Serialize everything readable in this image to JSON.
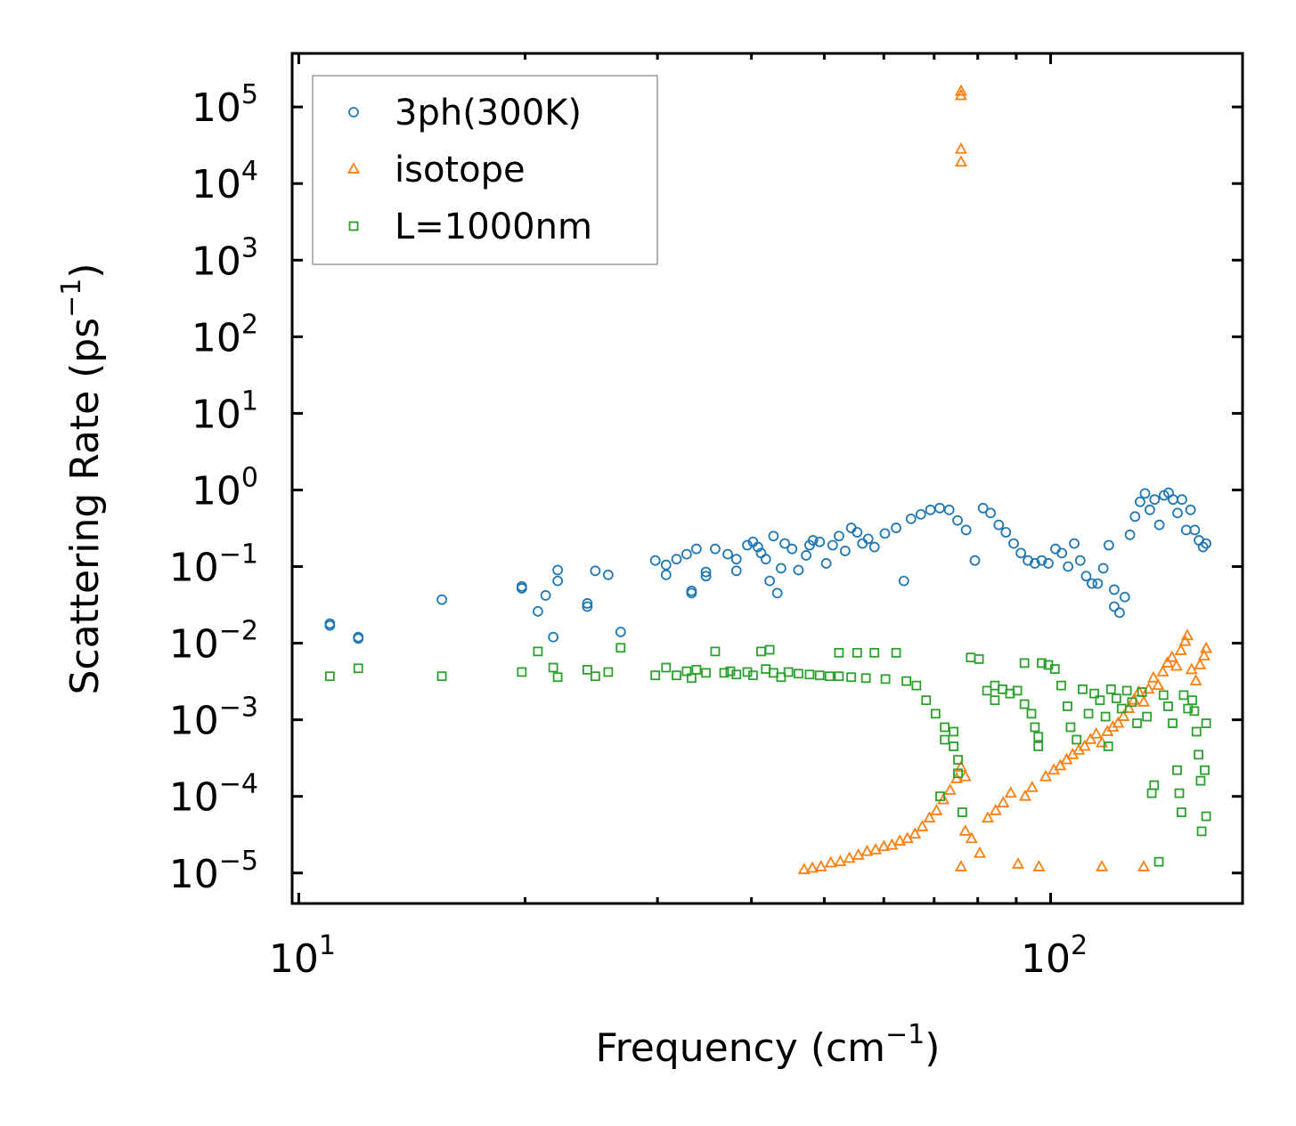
{
  "chart_data": {
    "type": "scatter",
    "xscale": "log",
    "yscale": "log",
    "xlabel": "Frequency (cm",
    "xlabel_sup": "−1",
    "xlabel_tail": ")",
    "ylabel": "Scattering Rate (ps",
    "ylabel_sup": "−1",
    "ylabel_tail": ")",
    "xlim": [
      9.8,
      180
    ],
    "ylim": [
      4e-06,
      500000
    ],
    "xticks": [
      {
        "value": 10,
        "base": "10",
        "exp": "1"
      },
      {
        "value": 100,
        "base": "10",
        "exp": "2"
      }
    ],
    "yticks": [
      {
        "value": 100000,
        "base": "10",
        "exp": "5"
      },
      {
        "value": 10000,
        "base": "10",
        "exp": "4"
      },
      {
        "value": 1000,
        "base": "10",
        "exp": "3"
      },
      {
        "value": 100,
        "base": "10",
        "exp": "2"
      },
      {
        "value": 10,
        "base": "10",
        "exp": "1"
      },
      {
        "value": 1,
        "base": "10",
        "exp": "0"
      },
      {
        "value": 0.1,
        "base": "10",
        "exp": "−1"
      },
      {
        "value": 0.01,
        "base": "10",
        "exp": "−2"
      },
      {
        "value": 0.001,
        "base": "10",
        "exp": "−3"
      },
      {
        "value": 0.0001,
        "base": "10",
        "exp": "−4"
      },
      {
        "value": 1e-05,
        "base": "10",
        "exp": "−5"
      }
    ],
    "legend_position": "upper-left",
    "series": [
      {
        "name": "3ph(300K)",
        "marker": "circle",
        "color": "#1f77b4",
        "points": [
          [
            11,
            0.018
          ],
          [
            11,
            0.017
          ],
          [
            12,
            0.012
          ],
          [
            12,
            0.0115
          ],
          [
            15.5,
            0.037
          ],
          [
            19.8,
            0.055
          ],
          [
            19.8,
            0.052
          ],
          [
            20.8,
            0.026
          ],
          [
            21.3,
            0.042
          ],
          [
            21.8,
            0.012
          ],
          [
            22.1,
            0.09
          ],
          [
            22.1,
            0.065
          ],
          [
            24.2,
            0.033
          ],
          [
            24.2,
            0.03
          ],
          [
            24.8,
            0.088
          ],
          [
            25.8,
            0.078
          ],
          [
            26.8,
            0.014
          ],
          [
            29.8,
            0.12
          ],
          [
            30.8,
            0.105
          ],
          [
            30.8,
            0.078
          ],
          [
            31.8,
            0.125
          ],
          [
            32.8,
            0.145
          ],
          [
            33.3,
            0.048
          ],
          [
            33.3,
            0.045
          ],
          [
            33.8,
            0.17
          ],
          [
            34.8,
            0.085
          ],
          [
            34.8,
            0.075
          ],
          [
            35.8,
            0.17
          ],
          [
            37.2,
            0.145
          ],
          [
            38.2,
            0.125
          ],
          [
            38.2,
            0.088
          ],
          [
            39.5,
            0.19
          ],
          [
            40.2,
            0.21
          ],
          [
            40.8,
            0.18
          ],
          [
            41.2,
            0.15
          ],
          [
            41.8,
            0.125
          ],
          [
            42.3,
            0.065
          ],
          [
            42.8,
            0.25
          ],
          [
            43.3,
            0.045
          ],
          [
            43.8,
            0.095
          ],
          [
            44.3,
            0.2
          ],
          [
            45.3,
            0.17
          ],
          [
            46.2,
            0.09
          ],
          [
            47.3,
            0.14
          ],
          [
            47.8,
            0.19
          ],
          [
            48.3,
            0.22
          ],
          [
            49.3,
            0.21
          ],
          [
            50.3,
            0.11
          ],
          [
            51.3,
            0.19
          ],
          [
            52.3,
            0.25
          ],
          [
            53.3,
            0.16
          ],
          [
            54.3,
            0.32
          ],
          [
            55.3,
            0.28
          ],
          [
            56.2,
            0.2
          ],
          [
            57.2,
            0.23
          ],
          [
            58.3,
            0.18
          ],
          [
            60.2,
            0.27
          ],
          [
            62.3,
            0.32
          ],
          [
            63.8,
            0.065
          ],
          [
            65.2,
            0.42
          ],
          [
            67.2,
            0.48
          ],
          [
            69.2,
            0.55
          ],
          [
            71.2,
            0.58
          ],
          [
            73.3,
            0.55
          ],
          [
            75.2,
            0.4
          ],
          [
            77.2,
            0.3
          ],
          [
            79.3,
            0.12
          ],
          [
            81.3,
            0.58
          ],
          [
            83.2,
            0.5
          ],
          [
            85.3,
            0.35
          ],
          [
            87.2,
            0.28
          ],
          [
            89.3,
            0.2
          ],
          [
            91.3,
            0.15
          ],
          [
            93.3,
            0.12
          ],
          [
            95.3,
            0.11
          ],
          [
            97.3,
            0.12
          ],
          [
            99.3,
            0.11
          ],
          [
            101.5,
            0.17
          ],
          [
            103.5,
            0.15
          ],
          [
            105.5,
            0.1
          ],
          [
            107.5,
            0.2
          ],
          [
            109.5,
            0.12
          ],
          [
            111.5,
            0.075
          ],
          [
            113.5,
            0.06
          ],
          [
            115.5,
            0.06
          ],
          [
            117.5,
            0.095
          ],
          [
            119.5,
            0.19
          ],
          [
            121.5,
            0.05
          ],
          [
            121.5,
            0.03
          ],
          [
            123.5,
            0.025
          ],
          [
            125.5,
            0.04
          ],
          [
            127.5,
            0.26
          ],
          [
            129.5,
            0.45
          ],
          [
            131.5,
            0.7
          ],
          [
            133.5,
            0.9
          ],
          [
            135.5,
            0.55
          ],
          [
            137.5,
            0.75
          ],
          [
            139.5,
            0.35
          ],
          [
            141.5,
            0.85
          ],
          [
            143.5,
            0.92
          ],
          [
            145.5,
            0.75
          ],
          [
            147.5,
            0.5
          ],
          [
            149.5,
            0.75
          ],
          [
            151.5,
            0.3
          ],
          [
            153.5,
            0.55
          ],
          [
            155.5,
            0.3
          ],
          [
            157.5,
            0.22
          ],
          [
            159.5,
            0.18
          ],
          [
            161,
            0.2
          ]
        ]
      },
      {
        "name": "isotope",
        "marker": "triangle",
        "color": "#ff7f0e",
        "points": [
          [
            76,
            160000
          ],
          [
            76,
            140000
          ],
          [
            76,
            28000
          ],
          [
            76,
            19000
          ],
          [
            47,
            1.1e-05
          ],
          [
            48.2,
            1.15e-05
          ],
          [
            49.5,
            1.2e-05
          ],
          [
            51,
            1.35e-05
          ],
          [
            52.5,
            1.4e-05
          ],
          [
            54,
            1.55e-05
          ],
          [
            55.5,
            1.7e-05
          ],
          [
            57,
            1.9e-05
          ],
          [
            58.5,
            2e-05
          ],
          [
            60,
            2.2e-05
          ],
          [
            61.5,
            2.3e-05
          ],
          [
            63,
            2.6e-05
          ],
          [
            64.5,
            2.8e-05
          ],
          [
            66,
            3.2e-05
          ],
          [
            67.5,
            4e-05
          ],
          [
            69,
            5.2e-05
          ],
          [
            70.5,
            6.5e-05
          ],
          [
            72,
            9e-05
          ],
          [
            73.5,
            0.00012
          ],
          [
            75,
            0.00017
          ],
          [
            76,
            0.00024
          ],
          [
            77,
            0.00018
          ],
          [
            77,
            3.5e-05
          ],
          [
            76,
            1.2e-05
          ],
          [
            78.5,
            2.8e-05
          ],
          [
            80.5,
            1.8e-05
          ],
          [
            82.5,
            5.2e-05
          ],
          [
            84.5,
            6.5e-05
          ],
          [
            86.5,
            8.2e-05
          ],
          [
            88.5,
            0.00011
          ],
          [
            90.5,
            1.3e-05
          ],
          [
            92.5,
            0.0001
          ],
          [
            94.5,
            0.00013
          ],
          [
            96.5,
            1.2e-05
          ],
          [
            98.5,
            0.00018
          ],
          [
            101,
            0.00022
          ],
          [
            103,
            0.00025
          ],
          [
            105,
            0.0003
          ],
          [
            107,
            0.00035
          ],
          [
            109,
            0.0004
          ],
          [
            111,
            0.00045
          ],
          [
            113,
            0.00055
          ],
          [
            115,
            0.00065
          ],
          [
            117,
            0.0005
          ],
          [
            117,
            1.2e-05
          ],
          [
            119,
            0.0007
          ],
          [
            121,
            0.0008
          ],
          [
            123,
            0.0009
          ],
          [
            125,
            0.0011
          ],
          [
            127,
            0.0014
          ],
          [
            129,
            0.0018
          ],
          [
            131,
            0.0023
          ],
          [
            133,
            0.0017
          ],
          [
            133,
            1.2e-05
          ],
          [
            135,
            0.0025
          ],
          [
            137,
            0.0035
          ],
          [
            139,
            0.0028
          ],
          [
            141,
            0.0042
          ],
          [
            143,
            0.0055
          ],
          [
            145,
            0.0065
          ],
          [
            147,
            0.005
          ],
          [
            149,
            0.008
          ],
          [
            151,
            0.0105
          ],
          [
            152,
            0.0125
          ],
          [
            154,
            0.0045
          ],
          [
            156,
            0.0032
          ],
          [
            158,
            0.0052
          ],
          [
            160,
            0.0068
          ],
          [
            161,
            0.0085
          ]
        ]
      },
      {
        "name": "L=1000nm",
        "marker": "square",
        "color": "#2ca02c",
        "points": [
          [
            11,
            0.0037
          ],
          [
            12,
            0.0047
          ],
          [
            15.5,
            0.0037
          ],
          [
            19.8,
            0.0042
          ],
          [
            20.8,
            0.0078
          ],
          [
            21.8,
            0.0048
          ],
          [
            22.1,
            0.0036
          ],
          [
            24.2,
            0.0045
          ],
          [
            24.8,
            0.0037
          ],
          [
            25.8,
            0.0042
          ],
          [
            26.8,
            0.0087
          ],
          [
            29.8,
            0.0038
          ],
          [
            30.8,
            0.0048
          ],
          [
            31.8,
            0.0038
          ],
          [
            32.8,
            0.0043
          ],
          [
            33.3,
            0.0035
          ],
          [
            33.8,
            0.0045
          ],
          [
            34.8,
            0.0041
          ],
          [
            35.8,
            0.0078
          ],
          [
            36.8,
            0.0041
          ],
          [
            37.5,
            0.0043
          ],
          [
            38.2,
            0.0039
          ],
          [
            39.5,
            0.0042
          ],
          [
            40.2,
            0.0038
          ],
          [
            41.2,
            0.0078
          ],
          [
            41.8,
            0.0046
          ],
          [
            42.3,
            0.0082
          ],
          [
            42.8,
            0.0041
          ],
          [
            43.8,
            0.0036
          ],
          [
            44.8,
            0.0042
          ],
          [
            46.2,
            0.004
          ],
          [
            47.8,
            0.0039
          ],
          [
            49.3,
            0.0038
          ],
          [
            50.8,
            0.0037
          ],
          [
            52.3,
            0.0075
          ],
          [
            52.3,
            0.0037
          ],
          [
            54.3,
            0.0036
          ],
          [
            55.3,
            0.0075
          ],
          [
            56.8,
            0.0035
          ],
          [
            58.3,
            0.0075
          ],
          [
            60.3,
            0.0034
          ],
          [
            62.3,
            0.0075
          ],
          [
            64.3,
            0.0032
          ],
          [
            66.3,
            0.0028
          ],
          [
            68.3,
            0.0018
          ],
          [
            70.3,
            0.0012
          ],
          [
            72.3,
            0.0008
          ],
          [
            72.3,
            0.00055
          ],
          [
            74.3,
            0.00045
          ],
          [
            75.3,
            0.0003
          ],
          [
            75.3,
            0.0002
          ],
          [
            76.3,
            6.2e-05
          ],
          [
            71.3,
            0.0001
          ],
          [
            74.3,
            0.0007
          ],
          [
            78.3,
            0.0065
          ],
          [
            80.3,
            0.0062
          ],
          [
            82.3,
            0.0024
          ],
          [
            84.3,
            0.0028
          ],
          [
            84.3,
            0.0018
          ],
          [
            86.3,
            0.0025
          ],
          [
            88.3,
            0.0022
          ],
          [
            90.3,
            0.0024
          ],
          [
            92.3,
            0.0055
          ],
          [
            92.3,
            0.0016
          ],
          [
            94.3,
            0.0012
          ],
          [
            95.3,
            0.0008
          ],
          [
            96.3,
            0.0006
          ],
          [
            96.3,
            0.00045
          ],
          [
            97.3,
            0.0055
          ],
          [
            99.3,
            0.0052
          ],
          [
            101.3,
            0.0046
          ],
          [
            103.3,
            0.0028
          ],
          [
            105.3,
            0.0015
          ],
          [
            106.3,
            0.0008
          ],
          [
            108.3,
            0.00055
          ],
          [
            110.3,
            0.0025
          ],
          [
            112.3,
            0.0012
          ],
          [
            114.3,
            0.0022
          ],
          [
            116.3,
            0.0018
          ],
          [
            118.3,
            0.0011
          ],
          [
            119.3,
            0.00045
          ],
          [
            120.3,
            0.0025
          ],
          [
            122.3,
            0.0019
          ],
          [
            124.3,
            0.0014
          ],
          [
            126.3,
            0.0024
          ],
          [
            128.3,
            0.0017
          ],
          [
            130.3,
            0.0009
          ],
          [
            132.3,
            0.0023
          ],
          [
            134.3,
            0.0011
          ],
          [
            136.3,
            0.00011
          ],
          [
            137.3,
            0.00014
          ],
          [
            139.3,
            1.4e-05
          ],
          [
            141.3,
            0.0021
          ],
          [
            143.3,
            0.0015
          ],
          [
            145.3,
            0.0009
          ],
          [
            147.3,
            0.00022
          ],
          [
            148.3,
            0.00011
          ],
          [
            149.3,
            6.2e-05
          ],
          [
            150.3,
            0.0021
          ],
          [
            152.3,
            0.0014
          ],
          [
            154.3,
            0.0018
          ],
          [
            155.3,
            0.0013
          ],
          [
            156.3,
            0.0007
          ],
          [
            157.3,
            0.00035
          ],
          [
            158.3,
            0.00016
          ],
          [
            160.3,
            0.00022
          ],
          [
            161,
            0.0009
          ],
          [
            161,
            5.5e-05
          ],
          [
            158.8,
            3.5e-05
          ]
        ]
      }
    ]
  }
}
